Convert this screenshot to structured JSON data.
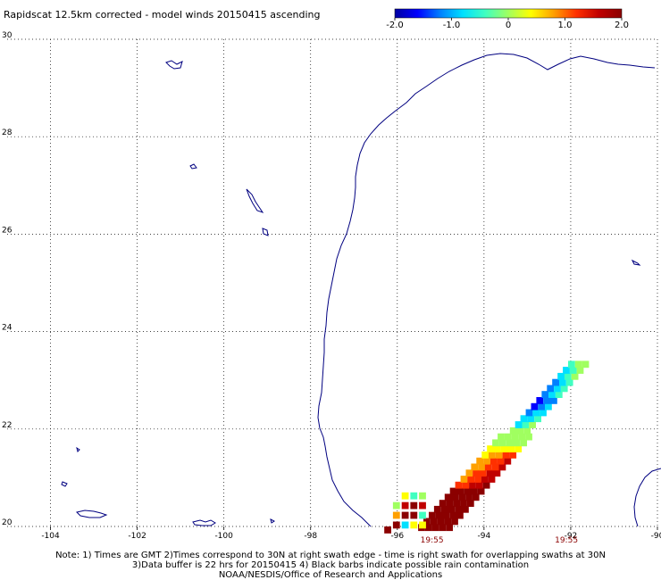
{
  "title": "Rapidscat 12.5km corrected - model winds 20150415 ascending",
  "colorbar": {
    "ticks": [
      "-2.0",
      "-1.0",
      "0",
      "1.0",
      "2.0"
    ],
    "tick_values": [
      -2.0,
      -1.0,
      0,
      1.0,
      2.0
    ],
    "range": [
      -2.0,
      2.0
    ],
    "colors": [
      "#0000a0",
      "#0000ff",
      "#0080ff",
      "#00e0ff",
      "#40ffc0",
      "#a0ff60",
      "#ffff00",
      "#ffa000",
      "#ff3000",
      "#c00000",
      "#8b0000"
    ]
  },
  "axes": {
    "lon_ticks": [
      "-104",
      "-102",
      "-100",
      "-98",
      "-96",
      "-94",
      "-92",
      "-90"
    ],
    "lon_values": [
      -104,
      -102,
      -100,
      -98,
      -96,
      -94,
      -92,
      -90
    ],
    "lat_ticks": [
      "30",
      "28",
      "26",
      "24",
      "22",
      "20"
    ],
    "lat_values": [
      30,
      28,
      26,
      24,
      22,
      20
    ],
    "lon_range": [
      -105,
      -90
    ],
    "lat_range": [
      20,
      30
    ],
    "grid": true
  },
  "swath_times": [
    "19:55",
    "19:55"
  ],
  "notes": [
    "Note: 1) Times are GMT 2)Times correspond to 30N at right swath edge - time is right swath for overlapping swaths at 30N",
    "3)Data buffer is 22 hrs for 20150415 4) Black barbs indicate possible rain contamination",
    "NOAA/NESDIS/Office of Research and Applications"
  ],
  "colors": {
    "coastline": "#000080",
    "grid": "#000000"
  }
}
